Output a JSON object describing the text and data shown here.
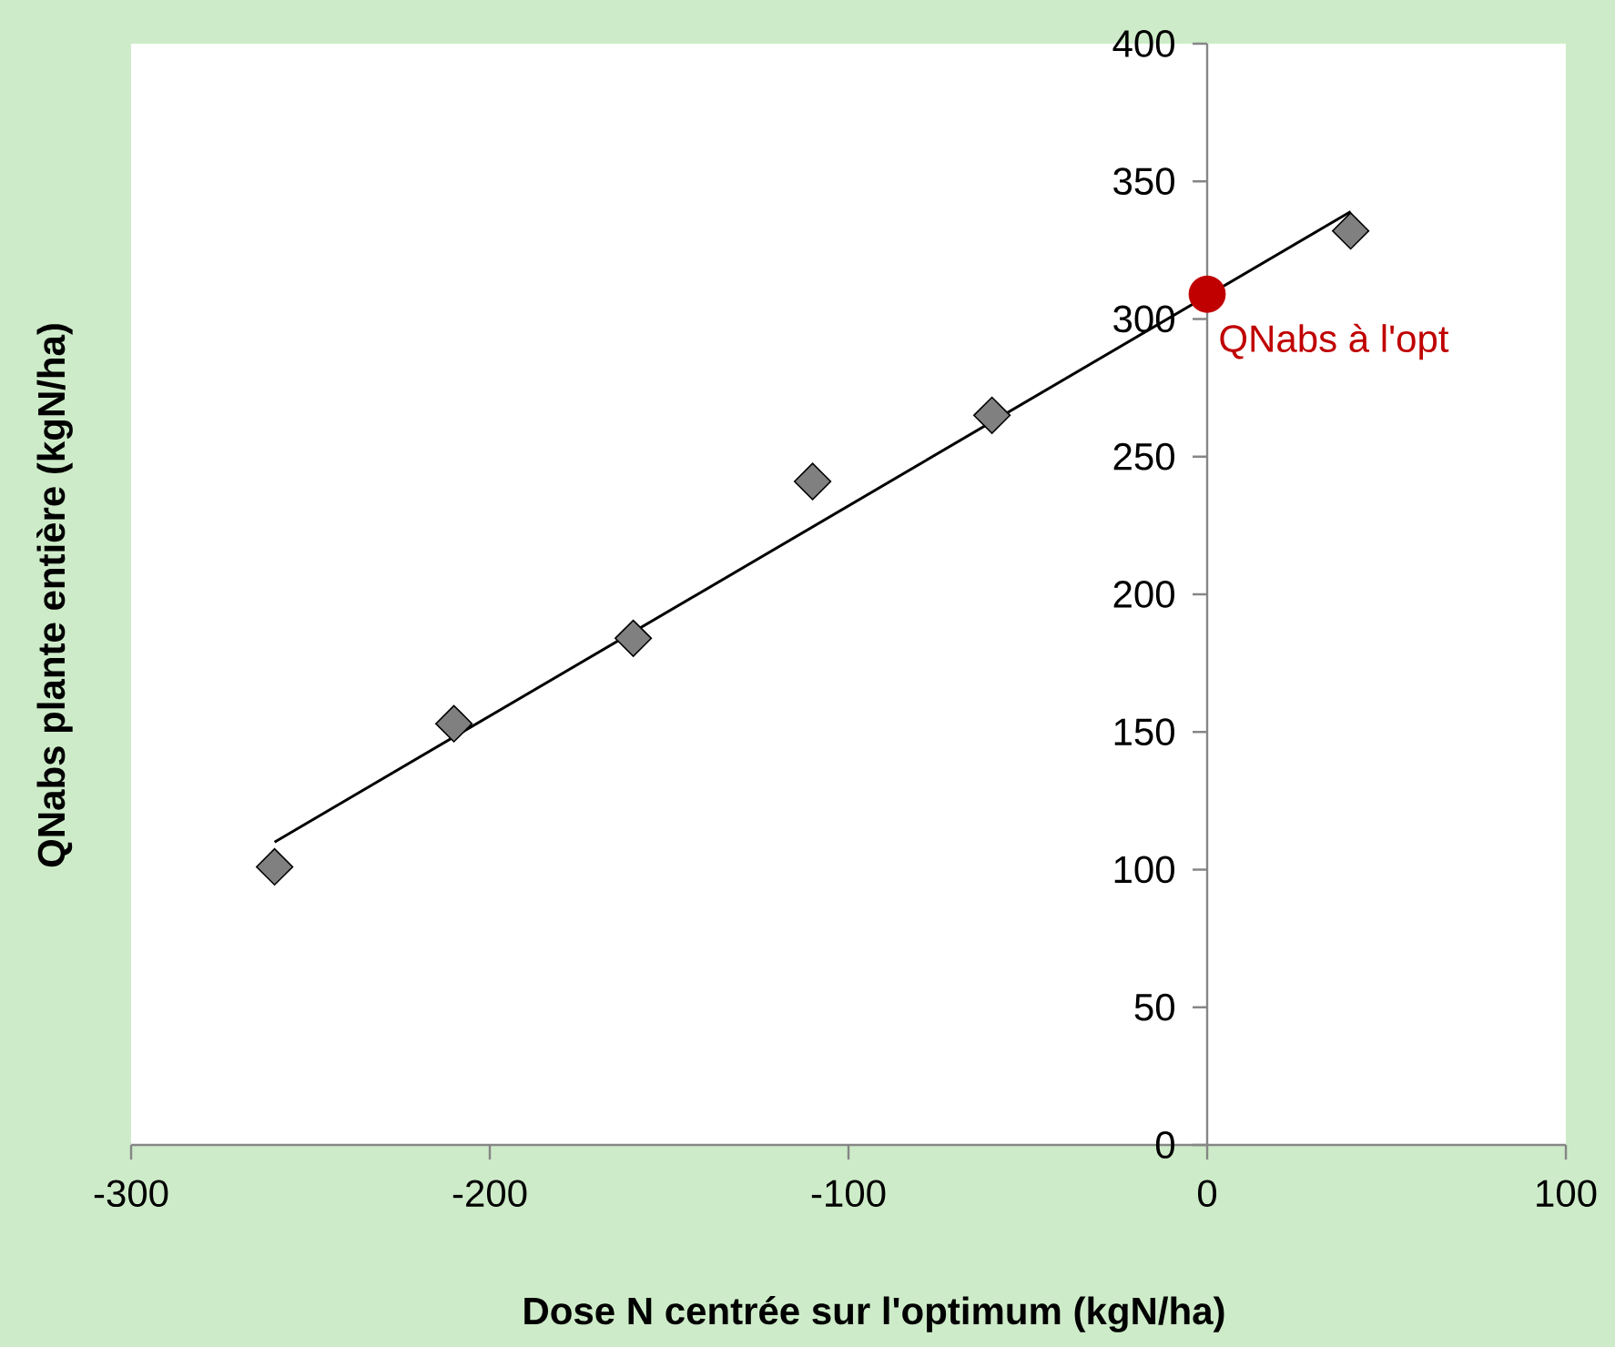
{
  "chart_data": {
    "type": "scatter",
    "xlabel": "Dose N centrée sur l'optimum (kgN/ha)",
    "ylabel": "QNabs plante entière (kgN/ha)",
    "xlim": [
      -300,
      100
    ],
    "xticks": [
      -300,
      -200,
      -100,
      0,
      100
    ],
    "ylim": [
      0,
      400
    ],
    "yticks": [
      0,
      50,
      100,
      150,
      200,
      250,
      300,
      350,
      400
    ],
    "series": [
      {
        "type": "line",
        "color": "#000000",
        "marker": "none",
        "x": [
          -260,
          40
        ],
        "values": [
          110,
          339
        ]
      },
      {
        "color": "#808080",
        "marker": "diamond",
        "x": [
          -260,
          -210,
          -160,
          -110,
          -60,
          40
        ],
        "values": [
          101,
          153,
          184,
          241,
          265,
          332
        ]
      },
      {
        "name": "QNabs à l'opt",
        "color": "#c00000",
        "marker": "circle",
        "x": [
          0
        ],
        "values": [
          309
        ]
      }
    ]
  }
}
